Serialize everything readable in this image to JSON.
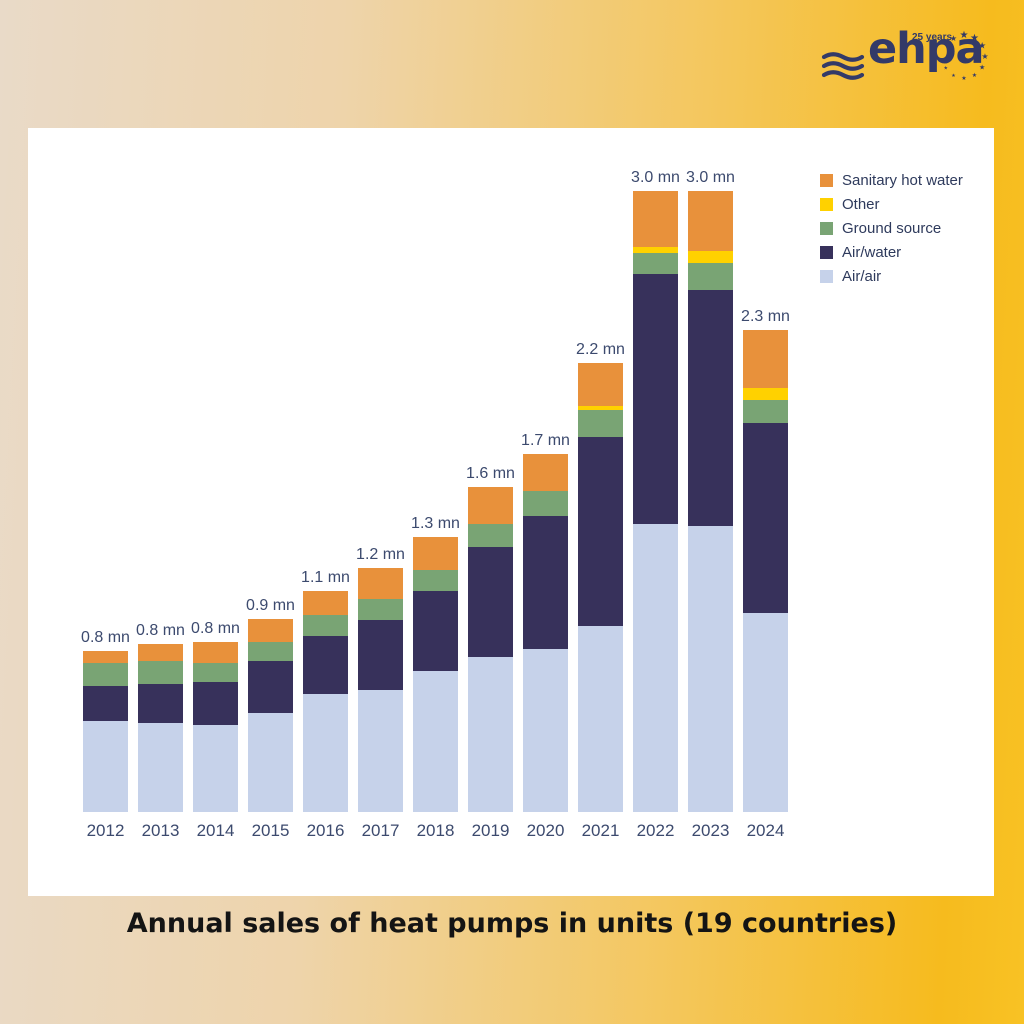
{
  "page": {
    "title": "Annual sales of heat pumps in units (19 countries)",
    "background": {
      "from": "#E9DAC8",
      "to": "#F6BB1E"
    }
  },
  "logo": {
    "brand": "ehpa",
    "badge": "25 years",
    "color": "#333A68"
  },
  "chart_data": {
    "type": "bar",
    "stacked": true,
    "title": "Annual sales of heat pumps in units (19 countries)",
    "unit": "million units",
    "grid": false,
    "legend_position": "top-right",
    "legend_order": [
      "Sanitary hot water",
      "Other",
      "Ground source",
      "Air/water",
      "Air/air"
    ],
    "label_color": "#3C4A6E",
    "ylim": [
      0,
      3.2
    ],
    "categories": [
      "2012",
      "2013",
      "2014",
      "2015",
      "2016",
      "2017",
      "2018",
      "2019",
      "2020",
      "2021",
      "2022",
      "2023",
      "2024"
    ],
    "series": [
      {
        "name": "Air/air",
        "color": "#C6D2EA",
        "values": [
          0.44,
          0.43,
          0.42,
          0.48,
          0.57,
          0.59,
          0.68,
          0.75,
          0.79,
          0.9,
          1.39,
          1.38,
          0.96
        ]
      },
      {
        "name": "Air/water",
        "color": "#37315B",
        "values": [
          0.17,
          0.19,
          0.21,
          0.25,
          0.28,
          0.34,
          0.39,
          0.53,
          0.64,
          0.91,
          1.21,
          1.14,
          0.92
        ]
      },
      {
        "name": "Ground source",
        "color": "#79A474",
        "values": [
          0.11,
          0.11,
          0.09,
          0.09,
          0.1,
          0.1,
          0.1,
          0.11,
          0.12,
          0.13,
          0.1,
          0.13,
          0.11
        ]
      },
      {
        "name": "Other",
        "color": "#FFD100",
        "values": [
          0.0,
          0.0,
          0.0,
          0.0,
          0.0,
          0.0,
          0.0,
          0.0,
          0.0,
          0.02,
          0.03,
          0.06,
          0.06
        ]
      },
      {
        "name": "Sanitary hot water",
        "color": "#E8913B",
        "values": [
          0.06,
          0.08,
          0.1,
          0.11,
          0.12,
          0.15,
          0.16,
          0.18,
          0.18,
          0.21,
          0.27,
          0.29,
          0.28
        ]
      }
    ],
    "bar_total_labels": [
      "0.8 mn",
      "0.8 mn",
      "0.8 mn",
      "0.9 mn",
      "1.1 mn",
      "1.2 mn",
      "1.3 mn",
      "1.6 mn",
      "1.7 mn",
      "2.2 mn",
      "3.0 mn",
      "3.0 mn",
      "2.3 mn"
    ]
  }
}
